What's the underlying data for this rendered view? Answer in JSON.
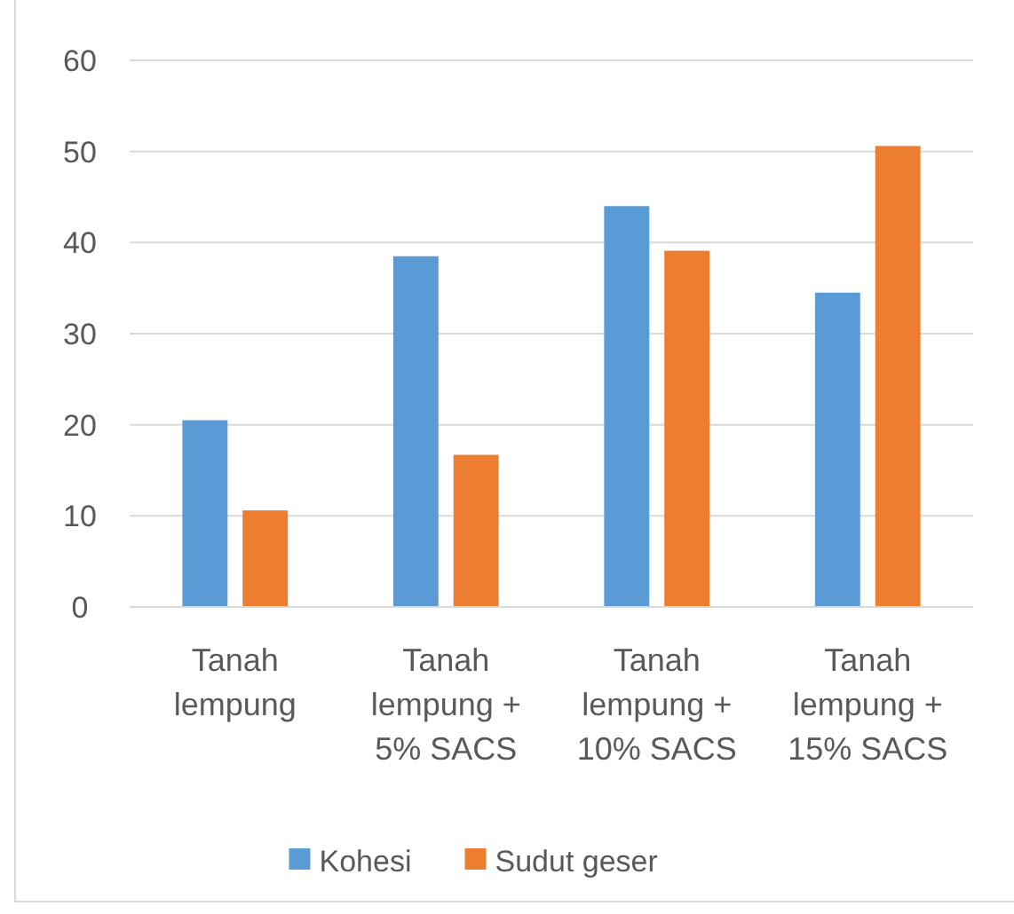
{
  "chart_data": {
    "type": "bar",
    "categories": [
      "Tanah lempung",
      "Tanah lempung + 5% SACS",
      "Tanah lempung + 10% SACS",
      "Tanah lempung + 15% SACS"
    ],
    "series": [
      {
        "name": "Kohesi",
        "color": "#5b9bd5",
        "values": [
          20.5,
          38.5,
          44.0,
          34.5
        ]
      },
      {
        "name": "Sudut geser",
        "color": "#ed7d31",
        "values": [
          10.6,
          16.7,
          39.1,
          50.6
        ]
      }
    ],
    "ylim": [
      0,
      60
    ],
    "yticks": [
      0,
      10,
      20,
      30,
      40,
      50,
      60
    ],
    "grid": "y",
    "legend": "bottom"
  }
}
